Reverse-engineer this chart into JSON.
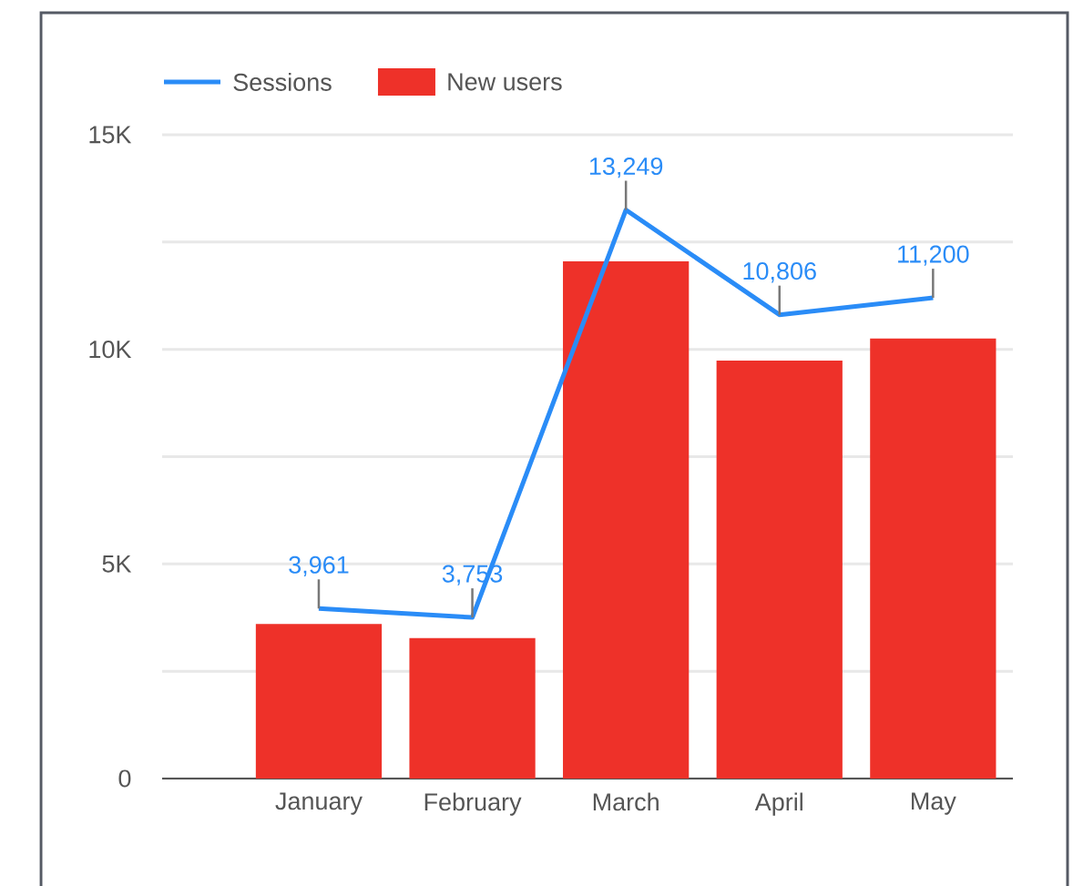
{
  "chart_data": {
    "type": "bar",
    "categories": [
      "January",
      "February",
      "March",
      "April",
      "May"
    ],
    "series": [
      {
        "name": "Sessions",
        "type": "line",
        "color": "#2a8cf7",
        "values": [
          3961,
          3753,
          13249,
          10806,
          11200
        ],
        "value_labels": [
          "3,961",
          "3,753",
          "13,249",
          "10,806",
          "11,200"
        ]
      },
      {
        "name": "New users",
        "color": "#ee3129",
        "values": [
          3600,
          3270,
          12050,
          9740,
          10250
        ]
      }
    ],
    "ylim": [
      0,
      15000
    ],
    "yticks": [
      0,
      {
        "value": 2500,
        "label": null
      },
      {
        "value": 5000,
        "label": "5K"
      },
      {
        "value": 7500,
        "label": null
      },
      {
        "value": 10000,
        "label": "10K"
      },
      {
        "value": 12500,
        "label": null
      },
      {
        "value": 15000,
        "label": "15K"
      }
    ],
    "grid": "y",
    "legend": "top left",
    "marker": "none",
    "line_style": "solid"
  }
}
